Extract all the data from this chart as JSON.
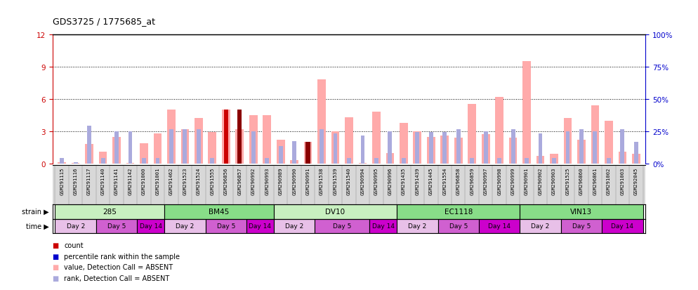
{
  "title": "GDS3725 / 1775685_at",
  "samples": [
    "GSM291115",
    "GSM291116",
    "GSM291117",
    "GSM291140",
    "GSM291141",
    "GSM291142",
    "GSM291000",
    "GSM291001",
    "GSM291462",
    "GSM291523",
    "GSM291524",
    "GSM291555",
    "GSM296856",
    "GSM296857",
    "GSM290992",
    "GSM290993",
    "GSM290989",
    "GSM290990",
    "GSM290991",
    "GSM291538",
    "GSM291539",
    "GSM291540",
    "GSM290994",
    "GSM290995",
    "GSM290996",
    "GSM291435",
    "GSM291439",
    "GSM291445",
    "GSM291554",
    "GSM296858",
    "GSM296859",
    "GSM290997",
    "GSM290998",
    "GSM290999",
    "GSM290901",
    "GSM290902",
    "GSM290903",
    "GSM291525",
    "GSM296860",
    "GSM296861",
    "GSM291002",
    "GSM291003",
    "GSM292045"
  ],
  "value_bars": [
    0.15,
    0.08,
    1.8,
    1.1,
    2.5,
    0.08,
    1.9,
    2.8,
    5.0,
    3.2,
    4.2,
    2.9,
    5.0,
    3.2,
    4.5,
    4.5,
    2.2,
    0.3,
    2.0,
    7.8,
    3.0,
    4.3,
    0.08,
    4.8,
    1.0,
    3.8,
    3.0,
    2.5,
    2.6,
    2.4,
    5.5,
    2.7,
    6.2,
    2.4,
    9.5,
    0.7,
    0.9,
    4.2,
    2.2,
    5.4,
    4.0,
    1.1,
    0.9
  ],
  "rank_bars": [
    0.5,
    0.1,
    3.5,
    0.5,
    3.0,
    3.0,
    0.5,
    0.5,
    3.2,
    3.2,
    3.2,
    0.5,
    3.8,
    3.8,
    3.0,
    0.5,
    1.6,
    2.1,
    0.5,
    3.2,
    2.8,
    0.5,
    2.6,
    0.5,
    3.0,
    0.5,
    2.9,
    2.9,
    2.9,
    3.2,
    0.5,
    3.0,
    0.5,
    3.2,
    0.5,
    2.8,
    0.5,
    3.0,
    3.2,
    3.0,
    0.5,
    3.2,
    2.0
  ],
  "count_bars": [
    0,
    0,
    0,
    0,
    0,
    0,
    0,
    0,
    0,
    0,
    0,
    0,
    5.0,
    5.0,
    0,
    0,
    0,
    0,
    2.0,
    0,
    0,
    0,
    0,
    0,
    0,
    0,
    0,
    0,
    0,
    0,
    0,
    0,
    0,
    0,
    0,
    0,
    0,
    0,
    0,
    0,
    0,
    0,
    0
  ],
  "count_colors": [
    "none",
    "none",
    "none",
    "none",
    "none",
    "none",
    "none",
    "none",
    "none",
    "none",
    "none",
    "none",
    "#cc0000",
    "#8b0000",
    "none",
    "none",
    "none",
    "none",
    "#8b0000",
    "none",
    "none",
    "none",
    "none",
    "none",
    "none",
    "none",
    "none",
    "none",
    "none",
    "none",
    "none",
    "none",
    "none",
    "none",
    "none",
    "none",
    "none",
    "none",
    "none",
    "none",
    "none",
    "none",
    "none"
  ],
  "strains": [
    {
      "label": "285",
      "start": 0,
      "end": 8,
      "color": "#c8f0c0"
    },
    {
      "label": "BM45",
      "start": 8,
      "end": 16,
      "color": "#88dd88"
    },
    {
      "label": "DV10",
      "start": 16,
      "end": 25,
      "color": "#c8f0c0"
    },
    {
      "label": "EC1118",
      "start": 25,
      "end": 34,
      "color": "#88dd88"
    },
    {
      "label": "VIN13",
      "start": 34,
      "end": 43,
      "color": "#88dd88"
    }
  ],
  "time_groups": [
    {
      "label": "Day 2",
      "start": 0,
      "end": 3,
      "color": "#e8c0e8"
    },
    {
      "label": "Day 5",
      "start": 3,
      "end": 6,
      "color": "#d060d0"
    },
    {
      "label": "Day 14",
      "start": 6,
      "end": 8,
      "color": "#cc00cc"
    },
    {
      "label": "Day 2",
      "start": 8,
      "end": 11,
      "color": "#e8c0e8"
    },
    {
      "label": "Day 5",
      "start": 11,
      "end": 14,
      "color": "#d060d0"
    },
    {
      "label": "Day 14",
      "start": 14,
      "end": 16,
      "color": "#cc00cc"
    },
    {
      "label": "Day 2",
      "start": 16,
      "end": 19,
      "color": "#e8c0e8"
    },
    {
      "label": "Day 5",
      "start": 19,
      "end": 23,
      "color": "#d060d0"
    },
    {
      "label": "Day 14",
      "start": 23,
      "end": 25,
      "color": "#cc00cc"
    },
    {
      "label": "Day 2",
      "start": 25,
      "end": 28,
      "color": "#e8c0e8"
    },
    {
      "label": "Day 5",
      "start": 28,
      "end": 31,
      "color": "#d060d0"
    },
    {
      "label": "Day 14",
      "start": 31,
      "end": 34,
      "color": "#cc00cc"
    },
    {
      "label": "Day 2",
      "start": 34,
      "end": 37,
      "color": "#e8c0e8"
    },
    {
      "label": "Day 5",
      "start": 37,
      "end": 40,
      "color": "#d060d0"
    },
    {
      "label": "Day 14",
      "start": 40,
      "end": 43,
      "color": "#cc00cc"
    }
  ],
  "ylim_left": [
    0,
    12
  ],
  "ylim_right": [
    0,
    100
  ],
  "yticks_left": [
    0,
    3,
    6,
    9,
    12
  ],
  "yticks_right": [
    0,
    25,
    50,
    75,
    100
  ],
  "color_value_absent": "#ffaaaa",
  "color_rank_absent": "#aaaadd",
  "left_axis_color": "#cc0000",
  "right_axis_color": "#0000cc",
  "bg_color": "#ffffff",
  "sample_bg_color": "#d8d8d8"
}
